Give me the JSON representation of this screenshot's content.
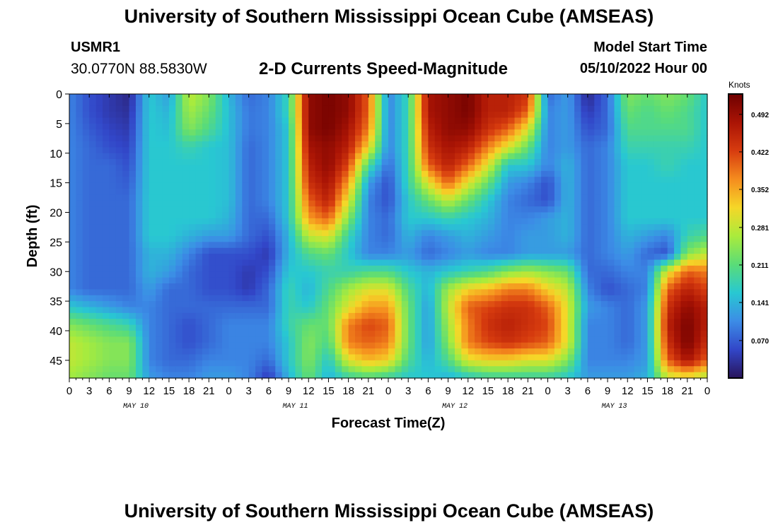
{
  "header": {
    "title": "University of Southern Mississippi Ocean Cube (AMSEAS)",
    "station": "USMR1",
    "coords": "30.0770N  88.5830W",
    "subtitle": "2-D Currents Speed-Magnitude",
    "model_start_label": "Model Start Time",
    "model_start_value": "05/10/2022 Hour 00"
  },
  "footer": {
    "title": "University of Southern Mississippi Ocean Cube (AMSEAS)"
  },
  "chart_data": {
    "type": "heatmap",
    "title": "2-D Currents Speed-Magnitude",
    "xlabel": "Forecast Time(Z)",
    "ylabel": "Depth (ft)",
    "x_hours_range": [
      0,
      96
    ],
    "y_depth_range": [
      0,
      48
    ],
    "y_reversed": true,
    "x_tick_labels": [
      "0",
      "3",
      "6",
      "9",
      "12",
      "15",
      "18",
      "21",
      "0",
      "3",
      "6",
      "9",
      "12",
      "15",
      "18",
      "21",
      "0",
      "3",
      "6",
      "9",
      "12",
      "15",
      "18",
      "21",
      "0",
      "3",
      "6",
      "9",
      "12",
      "15",
      "18",
      "21",
      "0"
    ],
    "y_tick_labels": [
      "0",
      "5",
      "10",
      "15",
      "20",
      "25",
      "30",
      "35",
      "40",
      "45"
    ],
    "date_labels": [
      "MAY 10",
      "MAY 11",
      "MAY 12",
      "MAY 13"
    ],
    "colorbar": {
      "unit": "Knots",
      "range": [
        0,
        0.53
      ],
      "tick_labels": [
        "0.492",
        "0.422",
        "0.352",
        "0.281",
        "0.211",
        "0.141",
        "0.070"
      ]
    },
    "depth_levels_ft": [
      0,
      3,
      6,
      9,
      12,
      15,
      18,
      21,
      24,
      27,
      30,
      33,
      36,
      39,
      42,
      45,
      48
    ],
    "time_hours": [
      0,
      3,
      6,
      9,
      12,
      15,
      18,
      21,
      24,
      27,
      30,
      33,
      36,
      39,
      42,
      45,
      48,
      51,
      54,
      57,
      60,
      63,
      66,
      69,
      72,
      75,
      78,
      81,
      84,
      87,
      90,
      93,
      96
    ],
    "speed_knots": [
      [
        0.1,
        0.06,
        0.04,
        0.02,
        0.16,
        0.12,
        0.28,
        0.24,
        0.14,
        0.08,
        0.1,
        0.18,
        0.5,
        0.52,
        0.5,
        0.4,
        0.1,
        0.18,
        0.48,
        0.5,
        0.52,
        0.46,
        0.46,
        0.44,
        0.08,
        0.12,
        0.02,
        0.08,
        0.24,
        0.22,
        0.24,
        0.22,
        0.16
      ],
      [
        0.1,
        0.06,
        0.04,
        0.03,
        0.16,
        0.14,
        0.26,
        0.22,
        0.15,
        0.09,
        0.1,
        0.18,
        0.5,
        0.52,
        0.5,
        0.4,
        0.1,
        0.18,
        0.48,
        0.5,
        0.52,
        0.46,
        0.46,
        0.4,
        0.1,
        0.12,
        0.04,
        0.08,
        0.22,
        0.2,
        0.22,
        0.2,
        0.16
      ],
      [
        0.1,
        0.07,
        0.05,
        0.04,
        0.16,
        0.15,
        0.24,
        0.2,
        0.15,
        0.09,
        0.1,
        0.16,
        0.5,
        0.52,
        0.48,
        0.38,
        0.1,
        0.18,
        0.46,
        0.5,
        0.5,
        0.44,
        0.4,
        0.3,
        0.1,
        0.12,
        0.06,
        0.08,
        0.2,
        0.2,
        0.2,
        0.2,
        0.16
      ],
      [
        0.1,
        0.08,
        0.06,
        0.05,
        0.16,
        0.16,
        0.18,
        0.16,
        0.15,
        0.08,
        0.1,
        0.16,
        0.48,
        0.5,
        0.46,
        0.32,
        0.1,
        0.18,
        0.44,
        0.48,
        0.46,
        0.38,
        0.3,
        0.22,
        0.1,
        0.12,
        0.08,
        0.1,
        0.18,
        0.18,
        0.18,
        0.18,
        0.16
      ],
      [
        0.1,
        0.08,
        0.08,
        0.06,
        0.16,
        0.16,
        0.16,
        0.16,
        0.15,
        0.08,
        0.1,
        0.16,
        0.46,
        0.5,
        0.42,
        0.2,
        0.08,
        0.18,
        0.4,
        0.46,
        0.4,
        0.3,
        0.16,
        0.16,
        0.1,
        0.14,
        0.08,
        0.1,
        0.16,
        0.16,
        0.18,
        0.16,
        0.16
      ],
      [
        0.1,
        0.08,
        0.08,
        0.07,
        0.16,
        0.16,
        0.16,
        0.16,
        0.15,
        0.08,
        0.1,
        0.16,
        0.44,
        0.48,
        0.36,
        0.12,
        0.06,
        0.18,
        0.3,
        0.4,
        0.3,
        0.22,
        0.12,
        0.1,
        0.06,
        0.14,
        0.08,
        0.1,
        0.16,
        0.16,
        0.16,
        0.16,
        0.16
      ],
      [
        0.1,
        0.08,
        0.08,
        0.08,
        0.16,
        0.16,
        0.16,
        0.16,
        0.15,
        0.08,
        0.1,
        0.16,
        0.4,
        0.46,
        0.3,
        0.1,
        0.06,
        0.16,
        0.22,
        0.28,
        0.22,
        0.16,
        0.1,
        0.08,
        0.06,
        0.14,
        0.08,
        0.1,
        0.16,
        0.16,
        0.16,
        0.16,
        0.16
      ],
      [
        0.1,
        0.08,
        0.08,
        0.08,
        0.16,
        0.16,
        0.16,
        0.16,
        0.14,
        0.08,
        0.08,
        0.16,
        0.36,
        0.4,
        0.24,
        0.1,
        0.08,
        0.16,
        0.16,
        0.18,
        0.16,
        0.14,
        0.1,
        0.1,
        0.12,
        0.14,
        0.08,
        0.1,
        0.16,
        0.16,
        0.16,
        0.16,
        0.16
      ],
      [
        0.1,
        0.08,
        0.08,
        0.08,
        0.16,
        0.16,
        0.14,
        0.12,
        0.12,
        0.08,
        0.06,
        0.14,
        0.28,
        0.3,
        0.18,
        0.1,
        0.08,
        0.14,
        0.1,
        0.12,
        0.14,
        0.12,
        0.1,
        0.12,
        0.12,
        0.14,
        0.08,
        0.1,
        0.14,
        0.12,
        0.1,
        0.18,
        0.2
      ],
      [
        0.1,
        0.08,
        0.08,
        0.08,
        0.14,
        0.14,
        0.1,
        0.06,
        0.06,
        0.06,
        0.04,
        0.14,
        0.2,
        0.22,
        0.16,
        0.1,
        0.1,
        0.12,
        0.08,
        0.1,
        0.12,
        0.1,
        0.1,
        0.12,
        0.12,
        0.12,
        0.08,
        0.1,
        0.12,
        0.08,
        0.06,
        0.24,
        0.28
      ],
      [
        0.1,
        0.08,
        0.08,
        0.08,
        0.14,
        0.12,
        0.08,
        0.06,
        0.06,
        0.04,
        0.06,
        0.16,
        0.16,
        0.18,
        0.18,
        0.2,
        0.2,
        0.16,
        0.14,
        0.16,
        0.18,
        0.2,
        0.24,
        0.26,
        0.24,
        0.22,
        0.08,
        0.08,
        0.1,
        0.1,
        0.3,
        0.4,
        0.38
      ],
      [
        0.1,
        0.08,
        0.08,
        0.08,
        0.12,
        0.08,
        0.08,
        0.06,
        0.06,
        0.04,
        0.08,
        0.18,
        0.14,
        0.2,
        0.26,
        0.3,
        0.3,
        0.2,
        0.14,
        0.26,
        0.32,
        0.34,
        0.38,
        0.38,
        0.32,
        0.28,
        0.1,
        0.06,
        0.08,
        0.1,
        0.4,
        0.46,
        0.42
      ],
      [
        0.16,
        0.14,
        0.12,
        0.1,
        0.1,
        0.08,
        0.08,
        0.08,
        0.08,
        0.08,
        0.08,
        0.18,
        0.16,
        0.22,
        0.3,
        0.36,
        0.36,
        0.22,
        0.12,
        0.28,
        0.4,
        0.42,
        0.44,
        0.44,
        0.4,
        0.3,
        0.12,
        0.1,
        0.08,
        0.12,
        0.44,
        0.5,
        0.46
      ],
      [
        0.24,
        0.22,
        0.2,
        0.18,
        0.1,
        0.08,
        0.06,
        0.08,
        0.1,
        0.1,
        0.1,
        0.18,
        0.22,
        0.22,
        0.38,
        0.42,
        0.4,
        0.22,
        0.12,
        0.26,
        0.38,
        0.44,
        0.46,
        0.44,
        0.42,
        0.3,
        0.1,
        0.1,
        0.08,
        0.12,
        0.46,
        0.52,
        0.46
      ],
      [
        0.28,
        0.26,
        0.24,
        0.24,
        0.1,
        0.08,
        0.06,
        0.08,
        0.1,
        0.1,
        0.1,
        0.16,
        0.24,
        0.2,
        0.38,
        0.4,
        0.38,
        0.22,
        0.12,
        0.24,
        0.38,
        0.42,
        0.44,
        0.42,
        0.4,
        0.3,
        0.1,
        0.1,
        0.08,
        0.12,
        0.44,
        0.52,
        0.44
      ],
      [
        0.28,
        0.26,
        0.24,
        0.24,
        0.1,
        0.08,
        0.08,
        0.1,
        0.1,
        0.1,
        0.08,
        0.16,
        0.24,
        0.16,
        0.3,
        0.34,
        0.32,
        0.2,
        0.14,
        0.2,
        0.3,
        0.32,
        0.32,
        0.3,
        0.3,
        0.24,
        0.1,
        0.1,
        0.1,
        0.12,
        0.4,
        0.48,
        0.4
      ],
      [
        0.26,
        0.24,
        0.22,
        0.22,
        0.12,
        0.1,
        0.1,
        0.12,
        0.12,
        0.1,
        0.04,
        0.14,
        0.22,
        0.14,
        0.18,
        0.2,
        0.18,
        0.16,
        0.16,
        0.14,
        0.16,
        0.18,
        0.18,
        0.18,
        0.18,
        0.16,
        0.12,
        0.12,
        0.12,
        0.14,
        0.28,
        0.3,
        0.26
      ]
    ]
  }
}
